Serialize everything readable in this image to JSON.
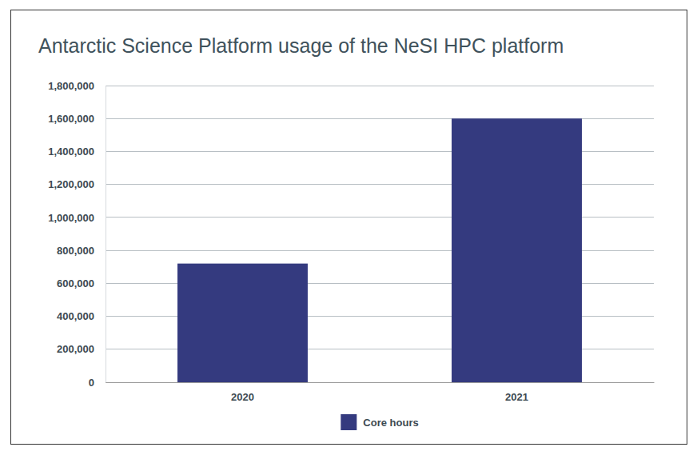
{
  "chart_data": {
    "type": "bar",
    "title": "Antarctic Science Platform usage of the NeSI HPC platform",
    "categories": [
      "2020",
      "2021"
    ],
    "series": [
      {
        "name": "Core hours",
        "color": "#343a7f",
        "values": [
          720000,
          1600000
        ]
      }
    ],
    "ylim": [
      0,
      1800000
    ],
    "yticks": [
      0,
      {
        "value": 200000,
        "label": "200,000"
      },
      {
        "value": 400000,
        "label": "400,000"
      },
      {
        "value": 600000,
        "label": "600,000"
      },
      {
        "value": 800000,
        "label": "800,000"
      },
      {
        "value": 1000000,
        "label": "1,000,000"
      },
      {
        "value": 1200000,
        "label": "1,200,000"
      },
      {
        "value": 1400000,
        "label": "1,400,000"
      },
      {
        "value": 1600000,
        "label": "1,600,000"
      },
      {
        "value": 1800000,
        "label": "1,800,000"
      }
    ],
    "grid": true,
    "legend": "bottom"
  }
}
